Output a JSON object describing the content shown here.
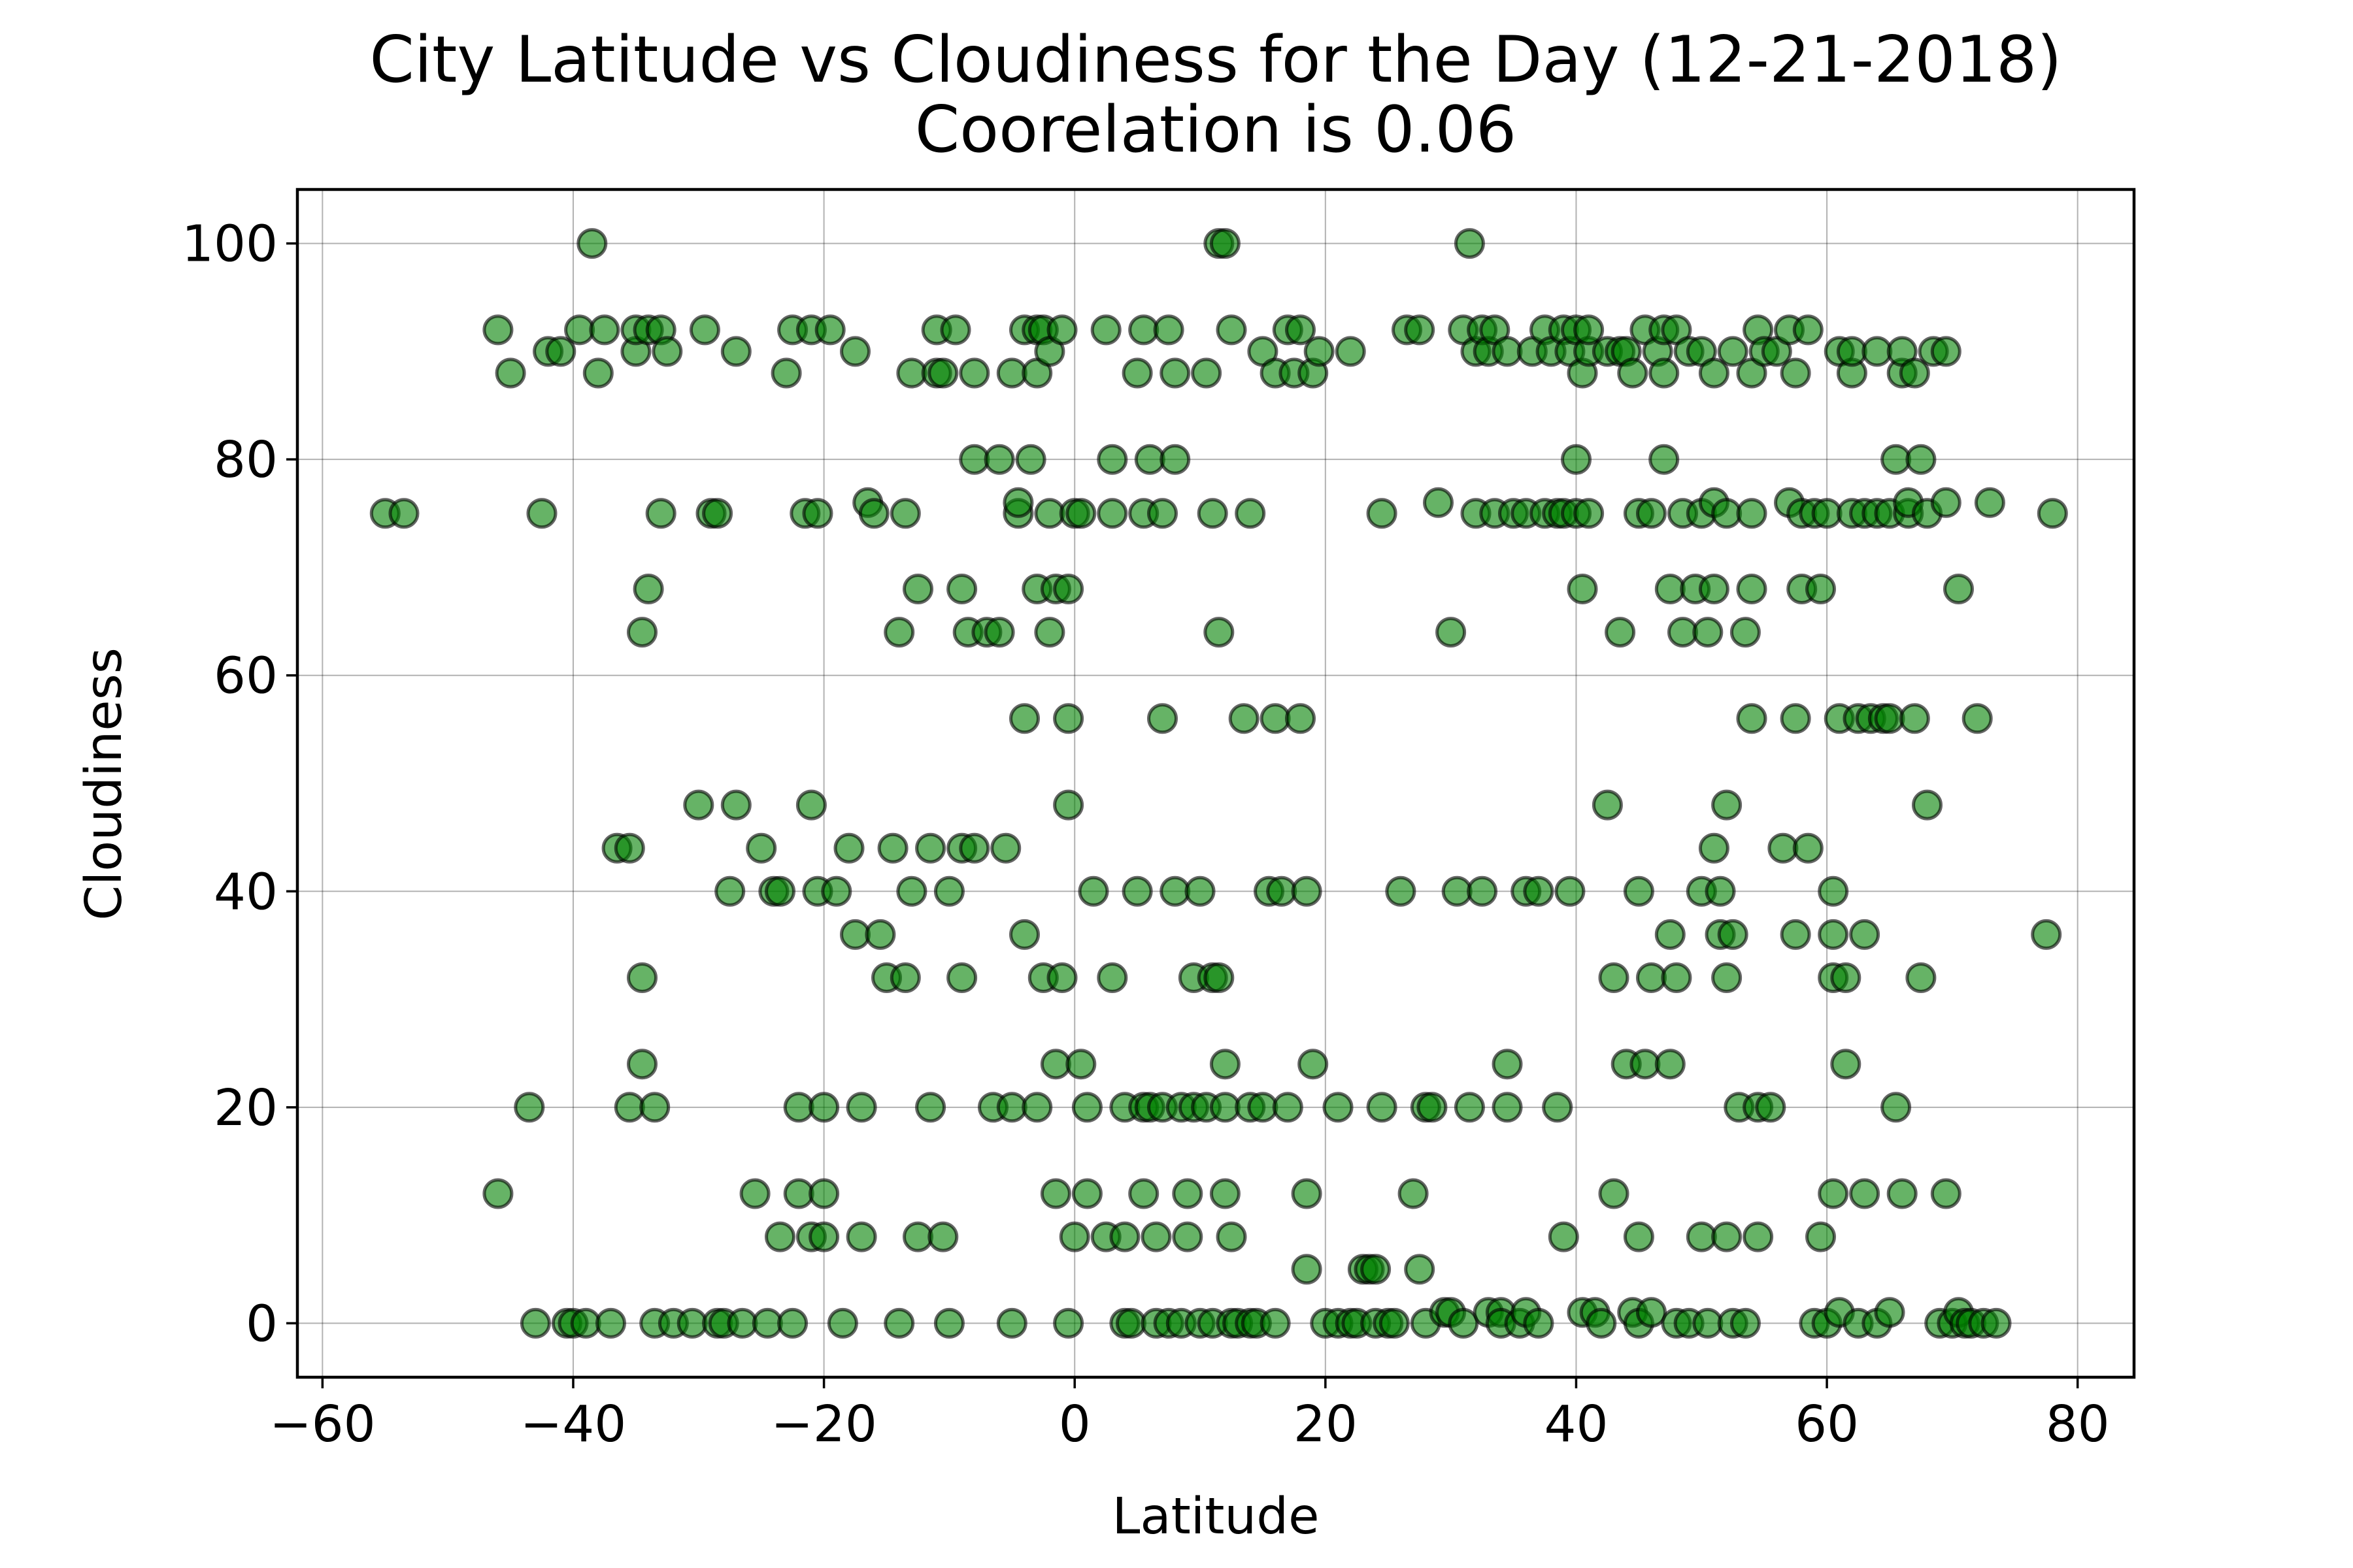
{
  "chart_data": {
    "type": "scatter",
    "title": "City Latitude vs Cloudiness for the Day (12-21-2018)",
    "subtitle": "Coorelation is 0.06",
    "xlabel": "Latitude",
    "ylabel": "Cloudiness",
    "xlim": [
      -62,
      84.5
    ],
    "ylim": [
      -5,
      105
    ],
    "xticks": [
      -60,
      -40,
      -20,
      0,
      20,
      40,
      60,
      80
    ],
    "xtick_labels": [
      "−60",
      "−40",
      "−20",
      "0",
      "20",
      "40",
      "60",
      "80"
    ],
    "yticks": [
      0,
      20,
      40,
      60,
      80,
      100
    ],
    "ytick_labels": [
      "0",
      "20",
      "40",
      "60",
      "80",
      "100"
    ],
    "grid": true,
    "marker_color": "#008000",
    "marker_edge_color": "#000000",
    "points": [
      [
        -55,
        75
      ],
      [
        -53.5,
        75
      ],
      [
        -46,
        92
      ],
      [
        -46,
        12
      ],
      [
        -45,
        88
      ],
      [
        -43.5,
        20
      ],
      [
        -43,
        0
      ],
      [
        -42.5,
        75
      ],
      [
        -42,
        90
      ],
      [
        -41,
        90
      ],
      [
        -40.5,
        0
      ],
      [
        -40,
        0
      ],
      [
        -39.5,
        92
      ],
      [
        -39,
        0
      ],
      [
        -38.5,
        100
      ],
      [
        -38,
        88
      ],
      [
        -37.5,
        92
      ],
      [
        -37,
        0
      ],
      [
        -36.5,
        44
      ],
      [
        -35.5,
        44
      ],
      [
        -35.5,
        20
      ],
      [
        -35,
        90
      ],
      [
        -35,
        92
      ],
      [
        -34.5,
        64
      ],
      [
        -34.5,
        24
      ],
      [
        -34.5,
        32
      ],
      [
        -34,
        68
      ],
      [
        -34,
        92
      ],
      [
        -33.5,
        0
      ],
      [
        -33.5,
        20
      ],
      [
        -33,
        92
      ],
      [
        -33,
        75
      ],
      [
        -32.5,
        90
      ],
      [
        -32,
        0
      ],
      [
        -30.5,
        0
      ],
      [
        -30,
        48
      ],
      [
        -29.5,
        92
      ],
      [
        -29,
        75
      ],
      [
        -28.5,
        75
      ],
      [
        -28.5,
        0
      ],
      [
        -28,
        0
      ],
      [
        -27.5,
        40
      ],
      [
        -27,
        48
      ],
      [
        -27,
        90
      ],
      [
        -26.5,
        0
      ],
      [
        -25.5,
        12
      ],
      [
        -25,
        44
      ],
      [
        -24.5,
        0
      ],
      [
        -24,
        40
      ],
      [
        -23.5,
        40
      ],
      [
        -23.5,
        8
      ],
      [
        -23,
        88
      ],
      [
        -22.5,
        92
      ],
      [
        -22.5,
        0
      ],
      [
        -22,
        20
      ],
      [
        -22,
        12
      ],
      [
        -21.5,
        75
      ],
      [
        -21,
        92
      ],
      [
        -21,
        8
      ],
      [
        -21,
        48
      ],
      [
        -20.5,
        40
      ],
      [
        -20.5,
        75
      ],
      [
        -20,
        20
      ],
      [
        -20,
        12
      ],
      [
        -20,
        8
      ],
      [
        -19.5,
        92
      ],
      [
        -19,
        40
      ],
      [
        -18.5,
        0
      ],
      [
        -18,
        44
      ],
      [
        -17.5,
        90
      ],
      [
        -17.5,
        36
      ],
      [
        -17,
        8
      ],
      [
        -17,
        20
      ],
      [
        -16.5,
        76
      ],
      [
        -16,
        75
      ],
      [
        -15.5,
        36
      ],
      [
        -15,
        32
      ],
      [
        -14.5,
        44
      ],
      [
        -14,
        64
      ],
      [
        -14,
        0
      ],
      [
        -13.5,
        75
      ],
      [
        -13.5,
        32
      ],
      [
        -13,
        40
      ],
      [
        -13,
        88
      ],
      [
        -12.5,
        68
      ],
      [
        -12.5,
        8
      ],
      [
        -11.5,
        44
      ],
      [
        -11.5,
        20
      ],
      [
        -11,
        92
      ],
      [
        -11,
        88
      ],
      [
        -10.5,
        8
      ],
      [
        -10.5,
        88
      ],
      [
        -10,
        40
      ],
      [
        -10,
        0
      ],
      [
        -9.5,
        92
      ],
      [
        -9,
        44
      ],
      [
        -9,
        68
      ],
      [
        -9,
        32
      ],
      [
        -8.5,
        64
      ],
      [
        -8,
        80
      ],
      [
        -8,
        44
      ],
      [
        -8,
        88
      ],
      [
        -7,
        64
      ],
      [
        -6.5,
        20
      ],
      [
        -6,
        80
      ],
      [
        -6,
        64
      ],
      [
        -5.5,
        44
      ],
      [
        -5,
        88
      ],
      [
        -5,
        20
      ],
      [
        -5,
        0
      ],
      [
        -4.5,
        75
      ],
      [
        -4.5,
        76
      ],
      [
        -4,
        92
      ],
      [
        -4,
        56
      ],
      [
        -4,
        36
      ],
      [
        -3.5,
        80
      ],
      [
        -3,
        88
      ],
      [
        -3,
        20
      ],
      [
        -3,
        68
      ],
      [
        -3,
        92
      ],
      [
        -2.5,
        32
      ],
      [
        -2.5,
        92
      ],
      [
        -2,
        64
      ],
      [
        -2,
        90
      ],
      [
        -2,
        75
      ],
      [
        -1.5,
        24
      ],
      [
        -1.5,
        12
      ],
      [
        -1.5,
        68
      ],
      [
        -1,
        32
      ],
      [
        -1,
        92
      ],
      [
        -0.5,
        48
      ],
      [
        -0.5,
        56
      ],
      [
        -0.5,
        68
      ],
      [
        -0.5,
        0
      ],
      [
        0,
        75
      ],
      [
        0,
        8
      ],
      [
        0.5,
        24
      ],
      [
        0.5,
        75
      ],
      [
        1,
        12
      ],
      [
        1,
        20
      ],
      [
        1.5,
        40
      ],
      [
        2.5,
        92
      ],
      [
        2.5,
        8
      ],
      [
        3,
        32
      ],
      [
        3,
        80
      ],
      [
        3,
        75
      ],
      [
        4,
        20
      ],
      [
        4,
        8
      ],
      [
        4,
        0
      ],
      [
        4.5,
        0
      ],
      [
        5,
        88
      ],
      [
        5,
        40
      ],
      [
        5.5,
        12
      ],
      [
        5.5,
        92
      ],
      [
        5.5,
        20
      ],
      [
        5.5,
        75
      ],
      [
        6,
        80
      ],
      [
        6,
        20
      ],
      [
        6.5,
        8
      ],
      [
        6.5,
        0
      ],
      [
        7,
        20
      ],
      [
        7,
        56
      ],
      [
        7,
        75
      ],
      [
        7.5,
        92
      ],
      [
        7.5,
        0
      ],
      [
        8,
        40
      ],
      [
        8,
        88
      ],
      [
        8,
        80
      ],
      [
        8.5,
        20
      ],
      [
        8.5,
        0
      ],
      [
        9,
        8
      ],
      [
        9,
        12
      ],
      [
        9.5,
        20
      ],
      [
        9.5,
        32
      ],
      [
        10,
        40
      ],
      [
        10,
        0
      ],
      [
        10.5,
        20
      ],
      [
        10.5,
        88
      ],
      [
        11,
        32
      ],
      [
        11,
        75
      ],
      [
        11,
        0
      ],
      [
        11.5,
        64
      ],
      [
        11.5,
        100
      ],
      [
        11.5,
        32
      ],
      [
        12,
        20
      ],
      [
        12,
        24
      ],
      [
        12,
        12
      ],
      [
        12,
        100
      ],
      [
        12.5,
        8
      ],
      [
        12.5,
        92
      ],
      [
        12.5,
        0
      ],
      [
        13,
        0
      ],
      [
        13.5,
        56
      ],
      [
        14,
        75
      ],
      [
        14,
        20
      ],
      [
        14,
        0
      ],
      [
        14.5,
        0
      ],
      [
        15,
        90
      ],
      [
        15,
        20
      ],
      [
        15.5,
        40
      ],
      [
        16,
        88
      ],
      [
        16,
        56
      ],
      [
        16,
        0
      ],
      [
        16.5,
        40
      ],
      [
        17,
        92
      ],
      [
        17,
        20
      ],
      [
        17.5,
        88
      ],
      [
        18,
        92
      ],
      [
        18,
        56
      ],
      [
        18.5,
        40
      ],
      [
        18.5,
        5
      ],
      [
        18.5,
        12
      ],
      [
        19,
        24
      ],
      [
        19,
        88
      ],
      [
        19.5,
        90
      ],
      [
        20,
        0
      ],
      [
        21,
        20
      ],
      [
        21,
        0
      ],
      [
        22,
        90
      ],
      [
        22,
        0
      ],
      [
        22.5,
        0
      ],
      [
        23,
        5
      ],
      [
        23.5,
        5
      ],
      [
        24,
        0
      ],
      [
        24,
        5
      ],
      [
        24.5,
        20
      ],
      [
        24.5,
        75
      ],
      [
        25,
        0
      ],
      [
        25.5,
        0
      ],
      [
        26,
        40
      ],
      [
        26.5,
        92
      ],
      [
        27,
        12
      ],
      [
        27.5,
        5
      ],
      [
        27.5,
        92
      ],
      [
        28,
        20
      ],
      [
        28,
        0
      ],
      [
        28.5,
        20
      ],
      [
        29,
        76
      ],
      [
        29.5,
        1
      ],
      [
        30,
        64
      ],
      [
        30,
        1
      ],
      [
        30.5,
        40
      ],
      [
        31,
        92
      ],
      [
        31,
        0
      ],
      [
        31.5,
        100
      ],
      [
        31.5,
        20
      ],
      [
        32,
        75
      ],
      [
        32,
        90
      ],
      [
        32.5,
        40
      ],
      [
        32.5,
        92
      ],
      [
        33,
        90
      ],
      [
        33,
        1
      ],
      [
        33.5,
        75
      ],
      [
        33.5,
        92
      ],
      [
        34,
        1
      ],
      [
        34,
        0
      ],
      [
        34.5,
        24
      ],
      [
        34.5,
        90
      ],
      [
        34.5,
        20
      ],
      [
        35,
        75
      ],
      [
        35.5,
        0
      ],
      [
        36,
        75
      ],
      [
        36,
        40
      ],
      [
        36,
        1
      ],
      [
        36.5,
        90
      ],
      [
        37,
        0
      ],
      [
        37,
        40
      ],
      [
        37.5,
        92
      ],
      [
        37.5,
        75
      ],
      [
        38,
        90
      ],
      [
        38.5,
        75
      ],
      [
        38.5,
        20
      ],
      [
        39,
        8
      ],
      [
        39,
        92
      ],
      [
        39,
        75
      ],
      [
        39.5,
        90
      ],
      [
        39.5,
        40
      ],
      [
        40,
        80
      ],
      [
        40,
        75
      ],
      [
        40,
        92
      ],
      [
        40.5,
        1
      ],
      [
        40.5,
        68
      ],
      [
        40.5,
        88
      ],
      [
        41,
        90
      ],
      [
        41,
        92
      ],
      [
        41,
        75
      ],
      [
        41.5,
        1
      ],
      [
        42,
        0
      ],
      [
        42.5,
        48
      ],
      [
        42.5,
        90
      ],
      [
        43,
        32
      ],
      [
        43,
        12
      ],
      [
        43.5,
        64
      ],
      [
        43.5,
        90
      ],
      [
        44,
        24
      ],
      [
        44,
        90
      ],
      [
        44.5,
        88
      ],
      [
        44.5,
        1
      ],
      [
        45,
        40
      ],
      [
        45,
        75
      ],
      [
        45,
        8
      ],
      [
        45,
        0
      ],
      [
        45.5,
        24
      ],
      [
        45.5,
        92
      ],
      [
        46,
        32
      ],
      [
        46,
        75
      ],
      [
        46,
        1
      ],
      [
        46.5,
        90
      ],
      [
        47,
        92
      ],
      [
        47,
        80
      ],
      [
        47,
        88
      ],
      [
        47.5,
        36
      ],
      [
        47.5,
        24
      ],
      [
        47.5,
        68
      ],
      [
        48,
        32
      ],
      [
        48,
        92
      ],
      [
        48,
        0
      ],
      [
        48.5,
        64
      ],
      [
        48.5,
        75
      ],
      [
        49,
        90
      ],
      [
        49,
        0
      ],
      [
        49.5,
        68
      ],
      [
        50,
        90
      ],
      [
        50,
        40
      ],
      [
        50,
        8
      ],
      [
        50,
        75
      ],
      [
        50.5,
        64
      ],
      [
        50.5,
        0
      ],
      [
        51,
        76
      ],
      [
        51,
        44
      ],
      [
        51,
        68
      ],
      [
        51,
        88
      ],
      [
        51.5,
        40
      ],
      [
        51.5,
        36
      ],
      [
        52,
        48
      ],
      [
        52,
        75
      ],
      [
        52,
        32
      ],
      [
        52,
        8
      ],
      [
        52.5,
        36
      ],
      [
        52.5,
        90
      ],
      [
        52.5,
        0
      ],
      [
        53,
        20
      ],
      [
        53.5,
        0
      ],
      [
        53.5,
        64
      ],
      [
        54,
        88
      ],
      [
        54,
        56
      ],
      [
        54,
        68
      ],
      [
        54,
        75
      ],
      [
        54.5,
        20
      ],
      [
        54.5,
        92
      ],
      [
        54.5,
        8
      ],
      [
        55,
        90
      ],
      [
        55.5,
        20
      ],
      [
        56,
        90
      ],
      [
        56.5,
        44
      ],
      [
        57,
        92
      ],
      [
        57,
        76
      ],
      [
        57.5,
        88
      ],
      [
        57.5,
        56
      ],
      [
        57.5,
        36
      ],
      [
        58,
        75
      ],
      [
        58,
        68
      ],
      [
        58.5,
        44
      ],
      [
        58.5,
        92
      ],
      [
        59,
        75
      ],
      [
        59,
        0
      ],
      [
        59.5,
        68
      ],
      [
        59.5,
        8
      ],
      [
        60,
        75
      ],
      [
        60,
        0
      ],
      [
        60.5,
        40
      ],
      [
        60.5,
        36
      ],
      [
        60.5,
        32
      ],
      [
        60.5,
        12
      ],
      [
        61,
        56
      ],
      [
        61,
        1
      ],
      [
        61,
        90
      ],
      [
        61.5,
        32
      ],
      [
        61.5,
        24
      ],
      [
        62,
        88
      ],
      [
        62,
        75
      ],
      [
        62,
        90
      ],
      [
        62.5,
        0
      ],
      [
        62.5,
        56
      ],
      [
        63,
        75
      ],
      [
        63,
        36
      ],
      [
        63,
        12
      ],
      [
        63.5,
        56
      ],
      [
        64,
        90
      ],
      [
        64,
        75
      ],
      [
        64,
        0
      ],
      [
        64.5,
        56
      ],
      [
        65,
        75
      ],
      [
        65,
        56
      ],
      [
        65,
        1
      ],
      [
        65.5,
        80
      ],
      [
        65.5,
        20
      ],
      [
        66,
        88
      ],
      [
        66,
        90
      ],
      [
        66,
        12
      ],
      [
        66.5,
        75
      ],
      [
        66.5,
        76
      ],
      [
        67,
        56
      ],
      [
        67,
        88
      ],
      [
        67.5,
        80
      ],
      [
        67.5,
        32
      ],
      [
        68,
        48
      ],
      [
        68,
        75
      ],
      [
        68.5,
        90
      ],
      [
        69,
        0
      ],
      [
        69.5,
        76
      ],
      [
        69.5,
        90
      ],
      [
        69.5,
        12
      ],
      [
        70,
        0
      ],
      [
        70.5,
        1
      ],
      [
        70.5,
        68
      ],
      [
        71,
        0
      ],
      [
        71.5,
        0
      ],
      [
        72,
        56
      ],
      [
        72.5,
        0
      ],
      [
        73,
        76
      ],
      [
        73.5,
        0
      ],
      [
        77.5,
        36
      ],
      [
        78,
        75
      ]
    ]
  }
}
